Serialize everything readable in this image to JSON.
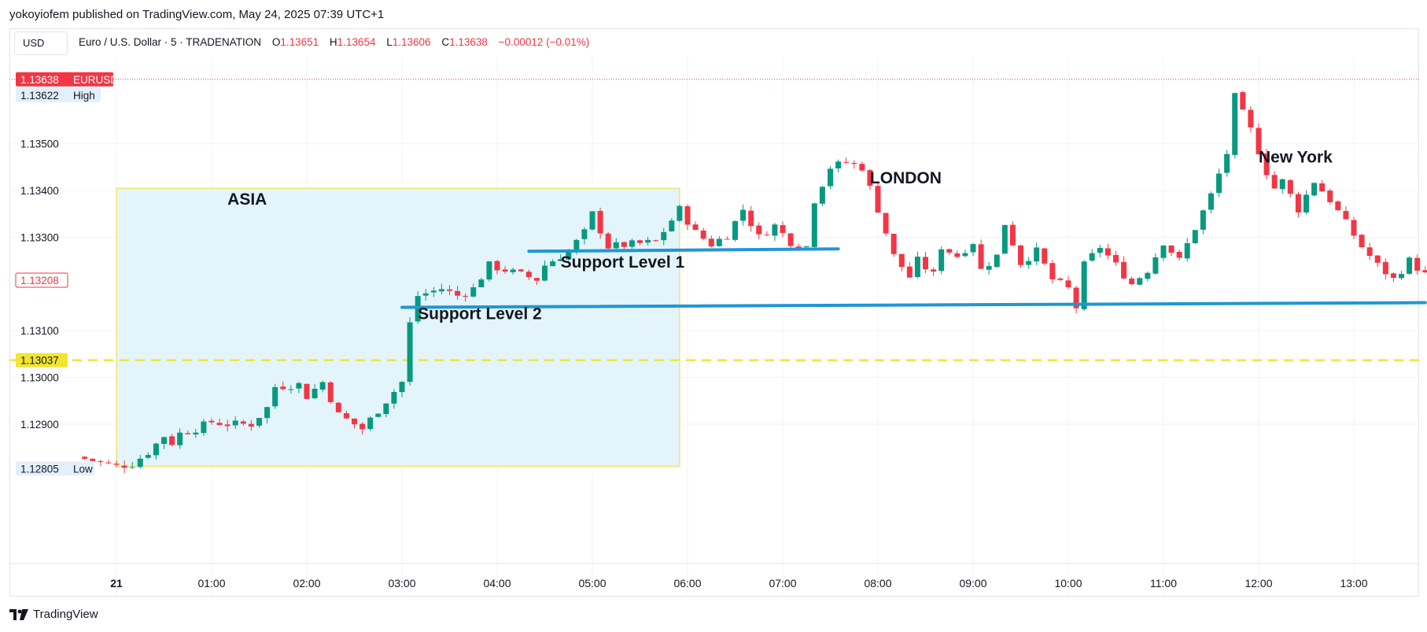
{
  "header": {
    "publisher": "yokoyiofem published on TradingView.com, May 24, 2025 07:39 UTC+1",
    "currency_button": "USD",
    "symbol": "Euro / U.S. Dollar · 5 · TRADENATION",
    "open_label": "O",
    "open": "1.13651",
    "high_label": "H",
    "high": "1.13654",
    "low_label": "L",
    "low": "1.13606",
    "close_label": "C",
    "close": "1.13638",
    "change": "−0.00012 (−0.01%)"
  },
  "footer": {
    "brand": "TradingView",
    "logo_icon": "tradingview-logo-icon"
  },
  "colors": {
    "up": "#089981",
    "down": "#f23645",
    "support": "#2196d3",
    "session_fill": "#e3f5fa",
    "session_border": "#f5e24a",
    "dashed": "#f2e531",
    "price_line": "#f23645"
  },
  "chart_data": {
    "type": "candlestick",
    "symbol": "EURUSD",
    "timeframe": "5",
    "ylim": [
      1.1276,
      1.137
    ],
    "y_ticks": [
      "1.13500",
      "1.13400",
      "1.13300",
      "1.13100",
      "1.13000",
      "1.12900"
    ],
    "x_ticks": [
      {
        "label": "21",
        "time": "00:00"
      },
      {
        "label": "01:00",
        "time": "01:00"
      },
      {
        "label": "02:00",
        "time": "02:00"
      },
      {
        "label": "03:00",
        "time": "03:00"
      },
      {
        "label": "04:00",
        "time": "04:00"
      },
      {
        "label": "05:00",
        "time": "05:00"
      },
      {
        "label": "06:00",
        "time": "06:00"
      },
      {
        "label": "07:00",
        "time": "07:00"
      },
      {
        "label": "08:00",
        "time": "08:00"
      },
      {
        "label": "09:00",
        "time": "09:00"
      },
      {
        "label": "10:00",
        "time": "10:00"
      },
      {
        "label": "11:00",
        "time": "11:00"
      },
      {
        "label": "12:00",
        "time": "12:00"
      },
      {
        "label": "13:00",
        "time": "13:00"
      }
    ],
    "price_labels": [
      {
        "value": "1.13638",
        "tag": "EURUSD",
        "kind": "last"
      },
      {
        "value": "1.13622",
        "tag": "High",
        "kind": "high"
      },
      {
        "value": "1.13208",
        "tag": "",
        "kind": "outline"
      },
      {
        "value": "1.13037",
        "tag": "",
        "kind": "dashed"
      },
      {
        "value": "1.12805",
        "tag": "Low",
        "kind": "low"
      }
    ],
    "last_price": 1.13638,
    "dashed_level": 1.13037,
    "session_box": {
      "label": "ASIA",
      "from": "00:00",
      "to": "05:55",
      "top": 1.13405,
      "bottom": 1.1281
    },
    "session_labels": [
      {
        "text": "ASIA",
        "time": "01:10",
        "price": 1.1337
      },
      {
        "text": "LONDON",
        "time": "07:55",
        "price": 1.13415
      },
      {
        "text": "New York",
        "time": "12:00",
        "price": 1.1346
      }
    ],
    "support_lines": [
      {
        "label": "Support Level 1",
        "from": "04:20",
        "to": "07:35",
        "start": 1.1327,
        "end": 1.13275,
        "label_time": "04:40",
        "label_price": 1.13235
      },
      {
        "label": "Support Level 2",
        "from": "03:00",
        "to": "13:45",
        "start": 1.1315,
        "end": 1.1316,
        "label_time": "03:10",
        "label_price": 1.13125
      }
    ],
    "close_path": [
      [
        "-00:25",
        1.1283
      ],
      [
        "00:00",
        1.1281
      ],
      [
        "00:10",
        1.12815
      ],
      [
        "00:20",
        1.1284
      ],
      [
        "00:30",
        1.12875
      ],
      [
        "00:35",
        1.1286
      ],
      [
        "00:40",
        1.1288
      ],
      [
        "00:50",
        1.1289
      ],
      [
        "01:00",
        1.12905
      ],
      [
        "01:10",
        1.129
      ],
      [
        "01:25",
        1.129
      ],
      [
        "01:35",
        1.12935
      ],
      [
        "01:40",
        1.1298
      ],
      [
        "01:55",
        1.12985
      ],
      [
        "02:00",
        1.1296
      ],
      [
        "02:10",
        1.1299
      ],
      [
        "02:20",
        1.1292
      ],
      [
        "02:35",
        1.1289
      ],
      [
        "02:45",
        1.1293
      ],
      [
        "03:00",
        1.1299
      ],
      [
        "03:05",
        1.13115
      ],
      [
        "03:10",
        1.13175
      ],
      [
        "03:25",
        1.1319
      ],
      [
        "03:35",
        1.13175
      ],
      [
        "03:45",
        1.1319
      ],
      [
        "03:55",
        1.1324
      ],
      [
        "04:05",
        1.1323
      ],
      [
        "04:15",
        1.1322
      ],
      [
        "04:25",
        1.1321
      ],
      [
        "04:30",
        1.1324
      ],
      [
        "04:45",
        1.1327
      ],
      [
        "04:55",
        1.1331
      ],
      [
        "05:00",
        1.1335
      ],
      [
        "05:10",
        1.1328
      ],
      [
        "05:25",
        1.13285
      ],
      [
        "05:40",
        1.1329
      ],
      [
        "05:55",
        1.1336
      ],
      [
        "06:05",
        1.1331
      ],
      [
        "06:15",
        1.13285
      ],
      [
        "06:25",
        1.13305
      ],
      [
        "06:35",
        1.1336
      ],
      [
        "06:45",
        1.133
      ],
      [
        "06:55",
        1.13325
      ],
      [
        "07:05",
        1.1329
      ],
      [
        "07:15",
        1.1328
      ],
      [
        "07:20",
        1.1338
      ],
      [
        "07:30",
        1.1345
      ],
      [
        "07:40",
        1.1346
      ],
      [
        "07:50",
        1.1345
      ],
      [
        "08:00",
        1.1336
      ],
      [
        "08:05",
        1.1331
      ],
      [
        "08:10",
        1.1326
      ],
      [
        "08:20",
        1.13215
      ],
      [
        "08:25",
        1.1325
      ],
      [
        "08:35",
        1.1322
      ],
      [
        "08:40",
        1.1328
      ],
      [
        "08:50",
        1.1326
      ],
      [
        "09:00",
        1.1329
      ],
      [
        "09:05",
        1.1323
      ],
      [
        "09:15",
        1.1326
      ],
      [
        "09:20",
        1.1333
      ],
      [
        "09:30",
        1.13245
      ],
      [
        "09:40",
        1.1327
      ],
      [
        "09:50",
        1.1321
      ],
      [
        "10:00",
        1.1319
      ],
      [
        "10:05",
        1.1315
      ],
      [
        "10:10",
        1.1324
      ],
      [
        "10:20",
        1.1328
      ],
      [
        "10:30",
        1.1324
      ],
      [
        "10:40",
        1.132
      ],
      [
        "10:50",
        1.1323
      ],
      [
        "11:00",
        1.1329
      ],
      [
        "11:10",
        1.1325
      ],
      [
        "11:20",
        1.1332
      ],
      [
        "11:30",
        1.1339
      ],
      [
        "11:40",
        1.1348
      ],
      [
        "11:45",
        1.136
      ],
      [
        "11:55",
        1.1353
      ],
      [
        "12:05",
        1.1344
      ],
      [
        "12:10",
        1.13405
      ],
      [
        "12:15",
        1.1342
      ],
      [
        "12:25",
        1.1336
      ],
      [
        "12:35",
        1.1342
      ],
      [
        "12:45",
        1.1338
      ],
      [
        "12:55",
        1.1333
      ],
      [
        "13:05",
        1.1328
      ],
      [
        "13:15",
        1.1324
      ],
      [
        "13:25",
        1.1321
      ],
      [
        "13:35",
        1.1325
      ],
      [
        "13:45",
        1.1322
      ],
      [
        "13:50",
        1.13208
      ]
    ]
  }
}
